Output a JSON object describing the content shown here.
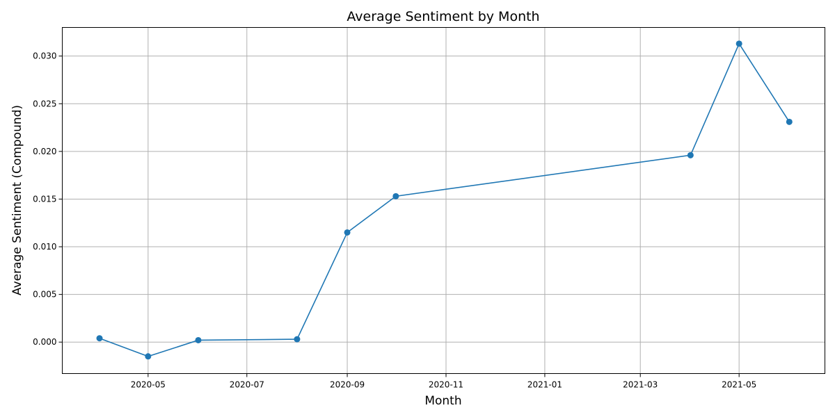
{
  "chart_data": {
    "type": "line",
    "title": "Average Sentiment by Month",
    "xlabel": "Month",
    "ylabel": "Average Sentiment (Compound)",
    "grid": true,
    "x_axis_type": "date",
    "xlim": [
      "2020-03-09",
      "2021-06-23"
    ],
    "ylim": [
      -0.0033,
      0.033
    ],
    "x_ticks": [
      "2020-05",
      "2020-07",
      "2020-09",
      "2020-11",
      "2021-01",
      "2021-03",
      "2021-05"
    ],
    "y_ticks": [
      "0.000",
      "0.005",
      "0.010",
      "0.015",
      "0.020",
      "0.025",
      "0.030"
    ],
    "series": [
      {
        "color": "#1f77b4",
        "marker": "circle",
        "x": [
          "2020-04-01",
          "2020-05-01",
          "2020-06-01",
          "2020-08-01",
          "2020-09-01",
          "2020-10-01",
          "2021-04-01",
          "2021-05-01",
          "2021-06-01"
        ],
        "y": [
          0.0004,
          -0.0015,
          0.0002,
          0.0003,
          0.0115,
          0.0153,
          0.0196,
          0.0313,
          0.0231
        ]
      }
    ]
  }
}
